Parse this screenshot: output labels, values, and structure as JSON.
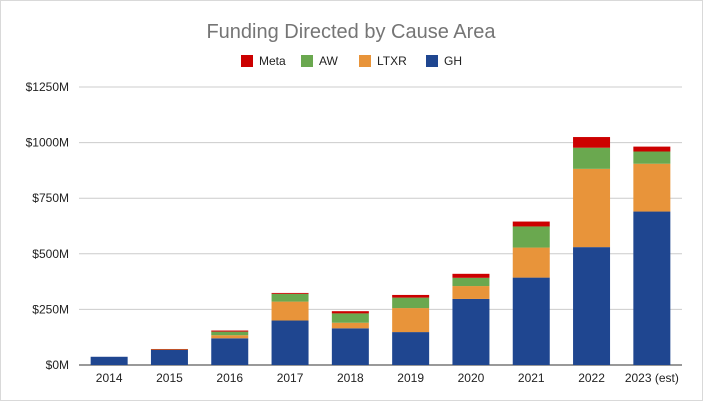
{
  "chart_data": {
    "type": "bar",
    "stacked": true,
    "title": "Funding Directed by Cause Area",
    "xlabel": "",
    "ylabel": "",
    "ylim": [
      0,
      1250
    ],
    "y_unit": "M",
    "y_ticks": [
      0,
      250,
      500,
      750,
      1000,
      1250
    ],
    "y_tick_labels": [
      "$0M",
      "$250M",
      "$500M",
      "$750M",
      "$1000M",
      "$1250M"
    ],
    "grid": true,
    "legend_position": "top",
    "legend_order": [
      "Meta",
      "AW",
      "LTXR",
      "GH"
    ],
    "categories": [
      "2014",
      "2015",
      "2016",
      "2017",
      "2018",
      "2019",
      "2020",
      "2021",
      "2022",
      "2023 (est)"
    ],
    "series": [
      {
        "name": "GH",
        "color": "#1f4690",
        "values": [
          37,
          68,
          120,
          200,
          165,
          148,
          297,
          393,
          530,
          690
        ]
      },
      {
        "name": "LTXR",
        "color": "#e8943a",
        "values": [
          0,
          2,
          14,
          85,
          25,
          108,
          58,
          135,
          352,
          215
        ]
      },
      {
        "name": "AW",
        "color": "#6aa84f",
        "values": [
          0,
          1,
          16,
          35,
          42,
          47,
          37,
          95,
          95,
          55
        ]
      },
      {
        "name": "Meta",
        "color": "#cc0000",
        "values": [
          0,
          1,
          5,
          4,
          10,
          12,
          18,
          22,
          48,
          22
        ]
      }
    ]
  }
}
